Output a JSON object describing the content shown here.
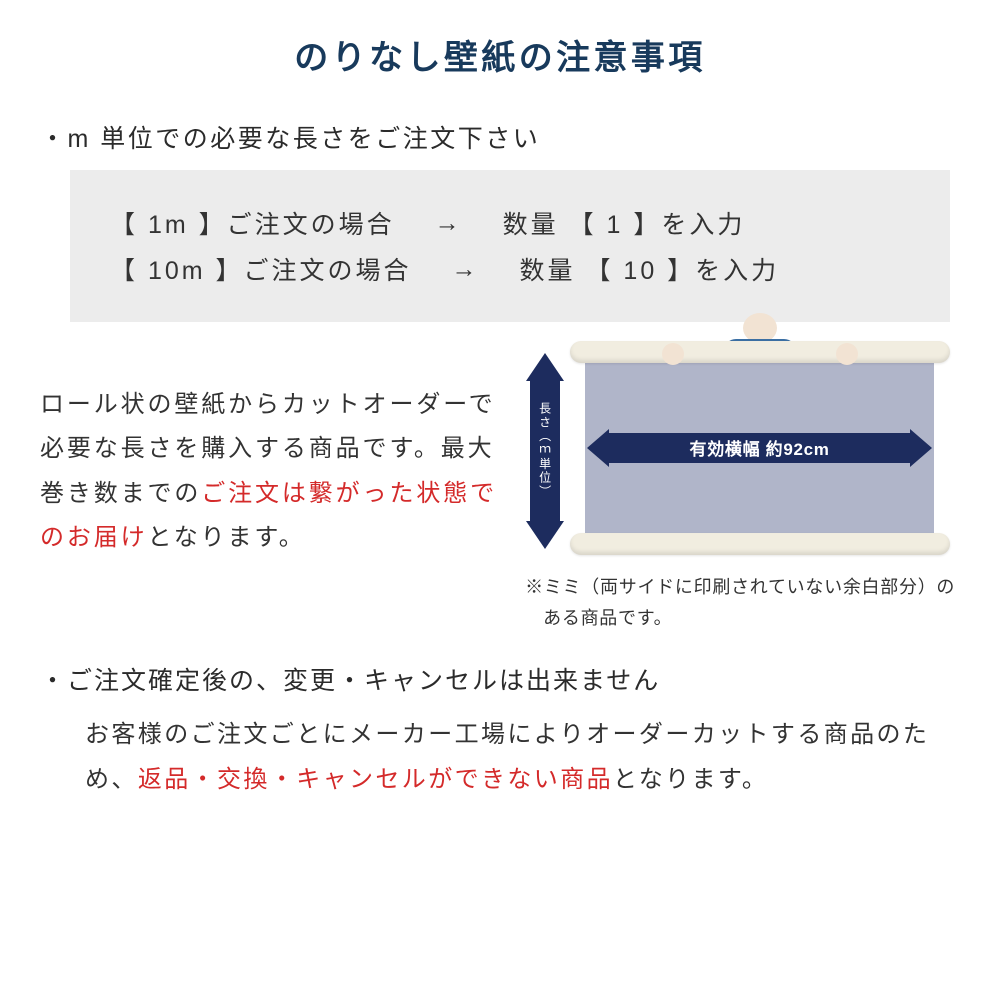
{
  "title": "のりなし壁紙の注意事項",
  "bullet1": "・m 単位での必要な長さをご注文下さい",
  "example": {
    "row1_left": "【 1m 】ご注文の場合",
    "arrow": "→",
    "row1_right": "数量 【 1 】を入力",
    "row2_left": "【 10m 】ご注文の場合",
    "row2_right": "数量 【 10 】を入力"
  },
  "mid": {
    "line1": "ロール状の壁紙からカットオーダーで必要な長さを購入する商品です。最大巻き数までの",
    "red1": "ご注文は繋がった状態でのお届け",
    "line2": "となります。"
  },
  "diagram": {
    "vertical_label": "長さ（ｍ単位）",
    "width_label": "有効横幅 約92cm",
    "note": "※ミミ（両サイドに印刷されていない余白部分）のある商品です。",
    "colors": {
      "arrow": "#1d2c5e",
      "sheet": "#b0b5c9",
      "roll": "#f1ede0",
      "skin": "#f2e3d3",
      "shirt": "#3b6fa3"
    }
  },
  "bullet2": "・ご注文確定後の、変更・キャンセルは出来ません",
  "body": {
    "part1": "お客様のご注文ごとにメーカー工場によりオーダーカットする商品のため、",
    "red": "返品・交換・キャンセルができない商品",
    "part2": "となります。"
  }
}
